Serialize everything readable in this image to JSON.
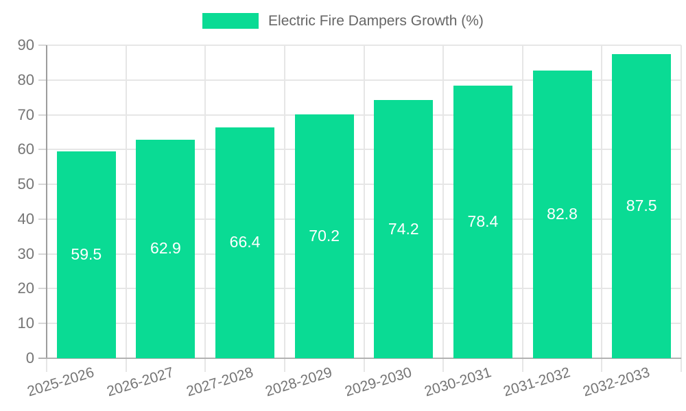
{
  "legend": {
    "label": "Electric Fire Dampers Growth (%)"
  },
  "colors": {
    "bar": "#0adb94",
    "grid": "#e6e6e6",
    "y_axis_line": "#9c9c9c",
    "x_axis_line": "#b1b1b1",
    "tick_text": "#757575",
    "legend_text": "#666666",
    "bar_label_text": "#ffffff",
    "background": "#ffffff"
  },
  "chart_data": {
    "type": "bar",
    "title": "Electric Fire Dampers Growth (%)",
    "categories": [
      "2025-2026",
      "2026-2027",
      "2027-2028",
      "2028-2029",
      "2029-2030",
      "2030-2031",
      "2031-2032",
      "2032-2033"
    ],
    "values": [
      59.5,
      62.9,
      66.4,
      70.2,
      74.2,
      78.4,
      82.8,
      87.5
    ],
    "bar_labels": [
      "59.5",
      "62.9",
      "66.4",
      "70.2",
      "74.2",
      "78.4",
      "82.8",
      "87.5"
    ],
    "xlabel": "",
    "ylabel": "",
    "ylim": [
      0,
      90
    ],
    "yticks": [
      0,
      10,
      20,
      30,
      40,
      50,
      60,
      70,
      80,
      90
    ],
    "grid": true,
    "legend_position": "top-center",
    "bar_label_position": "center"
  }
}
